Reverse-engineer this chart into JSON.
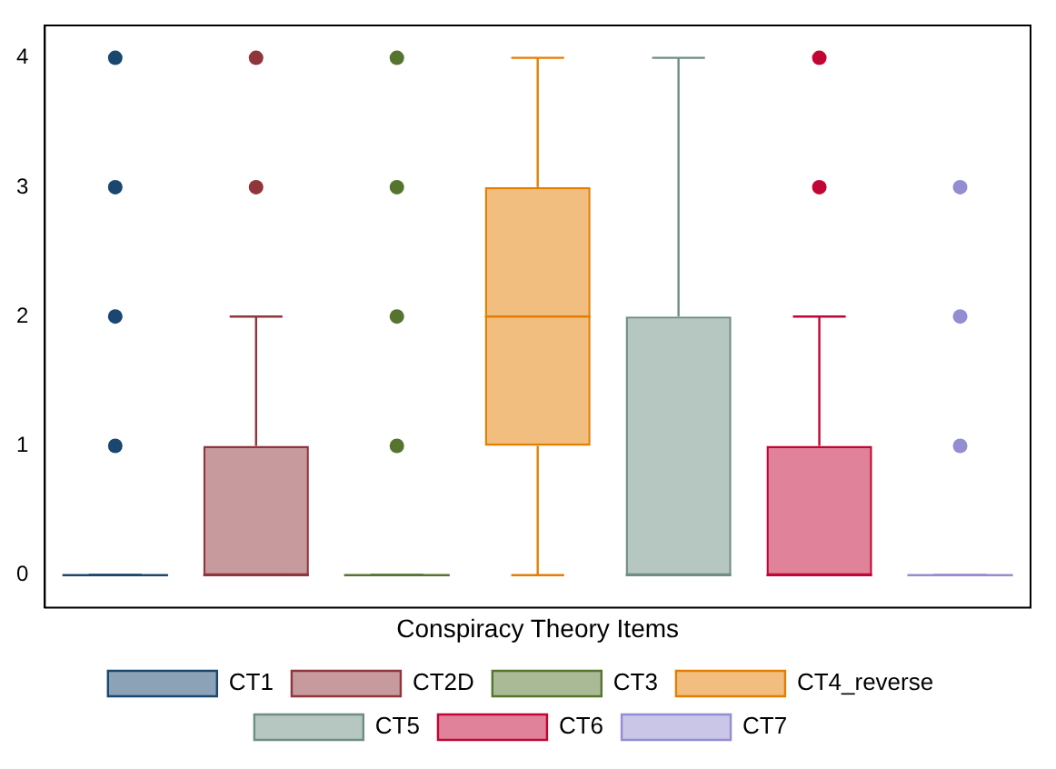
{
  "chart_data": {
    "type": "box",
    "xlabel": "Conspiracy Theory Items",
    "categories": [
      null,
      null,
      null,
      null,
      null,
      null,
      null
    ],
    "ylim": [
      -0.25,
      4.25
    ],
    "yticks": [
      0,
      1,
      2,
      3,
      4
    ],
    "grid": false,
    "legend": "bottom",
    "tick_labels": "y",
    "marker": "circle",
    "series": [
      {
        "name": "CT1",
        "color": "#1a476f",
        "boxes": [
          {
            "low": 0,
            "q1": 0,
            "median": 0,
            "q3": 0,
            "high": 0,
            "outliers": [
              1,
              2,
              3,
              4
            ]
          },
          null,
          null,
          null,
          null,
          null,
          null
        ]
      },
      {
        "name": "CT2D",
        "color": "#90353b",
        "boxes": [
          null,
          {
            "low": 0,
            "q1": 0,
            "median": 0,
            "q3": 1,
            "high": 2,
            "outliers": [
              3,
              4
            ]
          },
          null,
          null,
          null,
          null,
          null
        ]
      },
      {
        "name": "CT3",
        "color": "#55752f",
        "boxes": [
          null,
          null,
          {
            "low": 0,
            "q1": 0,
            "median": 0,
            "q3": 0,
            "high": 0,
            "outliers": [
              1,
              2,
              3,
              4
            ]
          },
          null,
          null,
          null,
          null
        ]
      },
      {
        "name": "CT4_reverse",
        "color": "#e37e00",
        "boxes": [
          null,
          null,
          null,
          {
            "low": 0,
            "q1": 1,
            "median": 2,
            "q3": 3,
            "high": 4
          },
          null,
          null,
          null
        ]
      },
      {
        "name": "CT5",
        "color": "#6e8e84",
        "boxes": [
          null,
          null,
          null,
          null,
          {
            "low": 0,
            "q1": 0,
            "median": 0,
            "q3": 2,
            "high": 4
          },
          null,
          null
        ]
      },
      {
        "name": "CT6",
        "color": "#c10534",
        "boxes": [
          null,
          null,
          null,
          null,
          null,
          {
            "low": 0,
            "q1": 0,
            "median": 0,
            "q3": 1,
            "high": 2,
            "outliers": [
              3,
              4
            ]
          },
          null
        ]
      },
      {
        "name": "CT7",
        "color": "#938dd2",
        "boxes": [
          null,
          null,
          null,
          null,
          null,
          null,
          {
            "low": 0,
            "q1": 0,
            "median": 0,
            "q3": 0,
            "high": 0,
            "outliers": [
              1,
              2,
              3
            ]
          }
        ]
      }
    ]
  }
}
